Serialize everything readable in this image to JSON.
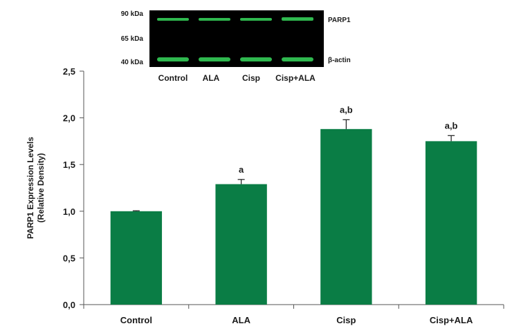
{
  "chart_data": {
    "type": "bar",
    "categories": [
      "Control",
      "ALA",
      "Cisp",
      "Cisp+ALA"
    ],
    "values": [
      1.0,
      1.29,
      1.88,
      1.75
    ],
    "errors": [
      0.005,
      0.05,
      0.1,
      0.06
    ],
    "annotations": [
      "",
      "a",
      "a,b",
      "a,b"
    ],
    "ylabel_line1": "PARP1 Expression Levels",
    "ylabel_line2": "(Relative Density)",
    "ylim": [
      0,
      2.5
    ],
    "yticks": [
      "0,0",
      "0,5",
      "1,0",
      "1,5",
      "2,0",
      "2,5"
    ],
    "ytick_values": [
      0,
      0.5,
      1.0,
      1.5,
      2.0,
      2.5
    ],
    "bar_color": "#0a7d45",
    "grid": false,
    "legend": "none"
  },
  "blot": {
    "markers": [
      "90 kDa",
      "65 kDa",
      "40 kDa"
    ],
    "bands": [
      "PARP1",
      "β-actin"
    ],
    "lanes": [
      "Control",
      "ALA",
      "Cisp",
      "Cisp+ALA"
    ],
    "background_color": "#000000",
    "band_color": "#2fb84f"
  }
}
